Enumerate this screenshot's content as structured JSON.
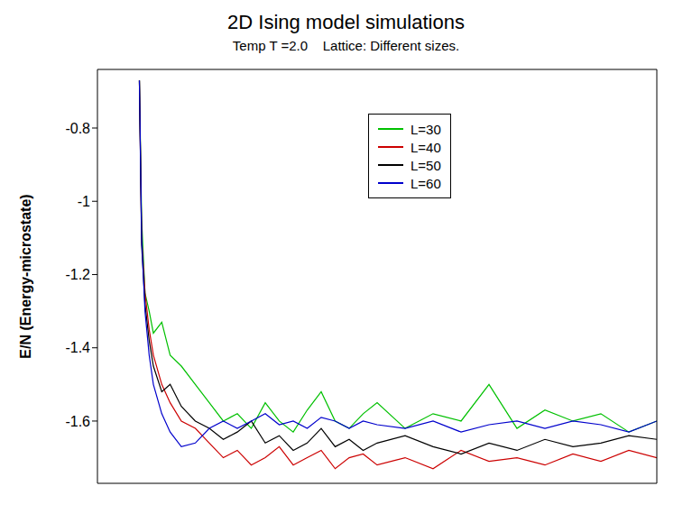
{
  "chart_data": {
    "type": "line",
    "title": "2D Ising model simulations",
    "subtitle": "Temp T =2.0    Lattice: Different sizes.",
    "y_label": "E/N    (Energy-microstate)",
    "x": [
      150,
      158,
      170,
      185,
      200,
      230,
      260,
      300,
      350,
      400,
      450,
      500,
      550,
      600,
      650,
      700,
      750,
      800,
      850,
      900,
      950,
      1000,
      1100,
      1200,
      1300,
      1400,
      1500,
      1600,
      1700,
      1800,
      1900,
      2000
    ],
    "series": [
      {
        "name": "L=30",
        "color": "#00c000",
        "values": [
          -0.67,
          -1.05,
          -1.25,
          -1.3,
          -1.36,
          -1.33,
          -1.42,
          -1.45,
          -1.5,
          -1.55,
          -1.6,
          -1.58,
          -1.62,
          -1.55,
          -1.6,
          -1.63,
          -1.57,
          -1.52,
          -1.6,
          -1.62,
          -1.58,
          -1.55,
          -1.62,
          -1.58,
          -1.6,
          -1.5,
          -1.62,
          -1.57,
          -1.6,
          -1.58,
          -1.63,
          -1.6
        ]
      },
      {
        "name": "L=40",
        "color": "#cc0000",
        "values": [
          -0.67,
          -1.1,
          -1.25,
          -1.35,
          -1.42,
          -1.5,
          -1.55,
          -1.6,
          -1.62,
          -1.66,
          -1.7,
          -1.68,
          -1.72,
          -1.7,
          -1.67,
          -1.72,
          -1.7,
          -1.68,
          -1.73,
          -1.7,
          -1.69,
          -1.72,
          -1.7,
          -1.73,
          -1.68,
          -1.71,
          -1.7,
          -1.72,
          -1.69,
          -1.71,
          -1.68,
          -1.7
        ]
      },
      {
        "name": "L=50",
        "color": "#000000",
        "values": [
          -0.67,
          -1.12,
          -1.28,
          -1.38,
          -1.45,
          -1.52,
          -1.5,
          -1.56,
          -1.6,
          -1.62,
          -1.65,
          -1.63,
          -1.6,
          -1.66,
          -1.64,
          -1.68,
          -1.66,
          -1.62,
          -1.67,
          -1.65,
          -1.68,
          -1.66,
          -1.64,
          -1.67,
          -1.69,
          -1.66,
          -1.68,
          -1.65,
          -1.67,
          -1.66,
          -1.64,
          -1.65
        ]
      },
      {
        "name": "L=60",
        "color": "#0000cc",
        "values": [
          -0.67,
          -1.1,
          -1.3,
          -1.42,
          -1.5,
          -1.58,
          -1.63,
          -1.67,
          -1.66,
          -1.62,
          -1.6,
          -1.62,
          -1.6,
          -1.58,
          -1.61,
          -1.6,
          -1.62,
          -1.59,
          -1.6,
          -1.62,
          -1.6,
          -1.61,
          -1.62,
          -1.6,
          -1.63,
          -1.61,
          -1.6,
          -1.62,
          -1.6,
          -1.61,
          -1.63,
          -1.6
        ]
      }
    ],
    "xlim": [
      0,
      2000
    ],
    "ylim": [
      -1.77,
      -0.64
    ],
    "yticks": [
      -1.6,
      -1.4,
      -1.2,
      -1,
      -0.8
    ],
    "tick_labels": "y",
    "grid": false,
    "legend": "top"
  }
}
